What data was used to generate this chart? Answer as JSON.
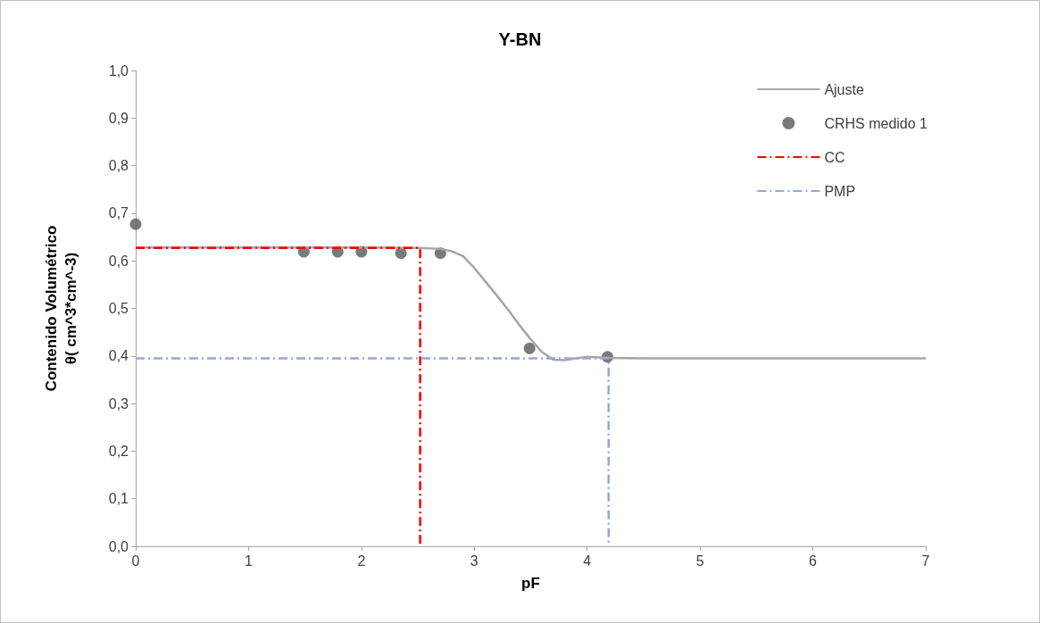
{
  "chart_data": {
    "type": "line",
    "title": "Y-BN",
    "xlabel": "pF",
    "ylabel": "Contenido Volumétrico\nθ( cm^3*cm^-3)",
    "xlim": [
      0,
      7
    ],
    "xticks": [
      0,
      1,
      2,
      3,
      4,
      5,
      6,
      7
    ],
    "ylim": [
      0,
      1
    ],
    "yticks": [
      {
        "value": 0,
        "label": "0,0"
      },
      {
        "value": 0.1,
        "label": "0,1"
      },
      {
        "value": 0.2,
        "label": "0,2"
      },
      {
        "value": 0.3,
        "label": "0,3"
      },
      {
        "value": 0.4,
        "label": "0,4"
      },
      {
        "value": 0.5,
        "label": "0,5"
      },
      {
        "value": 0.6,
        "label": "0,6"
      },
      {
        "value": 0.7,
        "label": "0,7"
      },
      {
        "value": 0.8,
        "label": "0,8"
      },
      {
        "value": 0.9,
        "label": "0,9"
      },
      {
        "value": 1,
        "label": "1,0"
      }
    ],
    "grid": false,
    "legend": "top right",
    "series": [
      {
        "name": "Ajuste",
        "color": "#a5a5a5",
        "marker": "none",
        "line_style": "solid",
        "x": [
          0,
          1,
          2,
          2.5,
          2.7,
          2.8,
          2.9,
          3.0,
          3.1,
          3.2,
          3.3,
          3.4,
          3.5,
          3.6,
          3.7,
          3.8,
          3.9,
          4.0,
          4.2,
          4.5,
          7
        ],
        "values": [
          0.628,
          0.628,
          0.628,
          0.627,
          0.625,
          0.62,
          0.61,
          0.585,
          0.556,
          0.527,
          0.497,
          0.465,
          0.435,
          0.408,
          0.392,
          0.391,
          0.395,
          0.398,
          0.396,
          0.395,
          0.395
        ]
      },
      {
        "name": "CRHS medido 1",
        "type": "scatter",
        "color": "#595959",
        "marker": "circle",
        "x": [
          0,
          1.49,
          1.79,
          2.0,
          2.35,
          2.7,
          3.49,
          4.18
        ],
        "values": [
          0.677,
          0.619,
          0.619,
          0.619,
          0.616,
          0.616,
          0.416,
          0.398
        ]
      },
      {
        "name": "CC",
        "color": "#ff0000",
        "marker": "none",
        "line_style": "dashed",
        "x": [
          0,
          2.52,
          2.52
        ],
        "values": [
          0.627,
          0.627,
          0
        ]
      },
      {
        "name": "PMP",
        "color": "#8eaadb",
        "marker": "none",
        "line_style": "dashed",
        "x": [
          0,
          4.19,
          4.19
        ],
        "values": [
          0.395,
          0.395,
          0
        ]
      }
    ]
  }
}
